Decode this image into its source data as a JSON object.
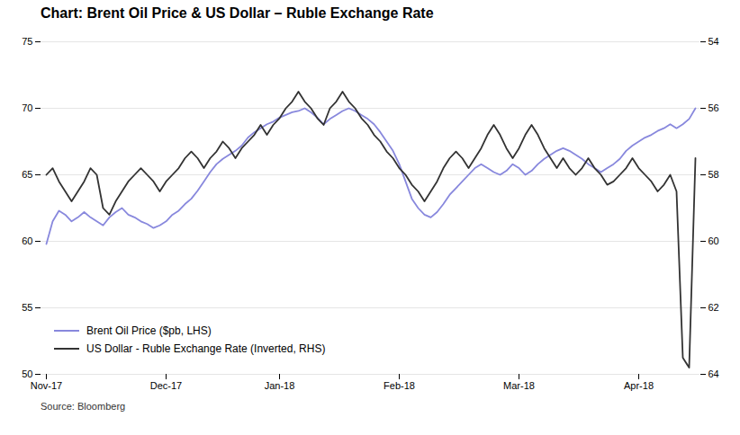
{
  "chart_data": {
    "type": "line",
    "title": "Chart: Brent Oil Price & US Dollar – Ruble Exchange Rate",
    "caption": "Source: Bloomberg",
    "categories": [
      "Nov-17",
      null,
      null,
      null,
      null,
      null,
      null,
      null,
      null,
      null,
      null,
      null,
      null,
      null,
      null,
      null,
      null,
      null,
      null,
      "Dec-17",
      null,
      null,
      null,
      null,
      null,
      null,
      null,
      null,
      null,
      null,
      null,
      null,
      null,
      null,
      null,
      null,
      null,
      "Jan-18",
      null,
      null,
      null,
      null,
      null,
      null,
      null,
      null,
      null,
      null,
      null,
      null,
      null,
      null,
      null,
      null,
      null,
      null,
      "Feb-18",
      null,
      null,
      null,
      null,
      null,
      null,
      null,
      null,
      null,
      null,
      null,
      null,
      null,
      null,
      null,
      null,
      null,
      null,
      "Mar-18",
      null,
      null,
      null,
      null,
      null,
      null,
      null,
      null,
      null,
      null,
      null,
      null,
      null,
      null,
      null,
      null,
      null,
      null,
      "Apr-18",
      null,
      null,
      null,
      null,
      null,
      null,
      null,
      null,
      null
    ],
    "series": [
      {
        "name": "Brent Oil Price ($pb, LHS)",
        "color": "#8888dd",
        "values": [
          59.8,
          61.5,
          62.3,
          62.0,
          61.5,
          61.8,
          62.2,
          61.8,
          61.5,
          61.2,
          61.8,
          62.2,
          62.5,
          62.0,
          61.8,
          61.5,
          61.3,
          61.0,
          61.2,
          61.5,
          62.0,
          62.3,
          62.8,
          63.2,
          63.8,
          64.5,
          65.2,
          65.8,
          66.2,
          66.5,
          66.8,
          67.2,
          67.8,
          68.2,
          68.5,
          68.8,
          69.0,
          69.3,
          69.5,
          69.7,
          69.8,
          70.0,
          69.7,
          69.3,
          68.8,
          69.2,
          69.5,
          69.8,
          70.0,
          69.8,
          69.5,
          69.2,
          68.8,
          68.2,
          67.5,
          66.8,
          65.8,
          64.5,
          63.2,
          62.5,
          62.0,
          61.8,
          62.2,
          62.8,
          63.5,
          64.0,
          64.5,
          65.0,
          65.5,
          65.8,
          65.5,
          65.2,
          65.0,
          65.3,
          65.8,
          65.5,
          65.0,
          65.3,
          65.8,
          66.2,
          66.5,
          66.8,
          67.0,
          66.8,
          66.5,
          66.2,
          65.8,
          65.5,
          65.2,
          65.5,
          65.8,
          66.2,
          66.8,
          67.2,
          67.5,
          67.8,
          68.0,
          68.3,
          68.5,
          68.8,
          68.5,
          68.8,
          69.2,
          70.0
        ]
      },
      {
        "name": "US Dollar - Ruble Exchange Rate (Inverted, RHS)",
        "color": "#333333",
        "axis": "y2",
        "values": [
          58.0,
          57.8,
          58.2,
          58.5,
          58.8,
          58.5,
          58.2,
          57.8,
          58.0,
          59.0,
          59.2,
          58.8,
          58.5,
          58.2,
          58.0,
          57.8,
          58.0,
          58.2,
          58.5,
          58.2,
          58.0,
          57.8,
          57.5,
          57.3,
          57.5,
          57.8,
          57.5,
          57.3,
          57.0,
          57.2,
          57.5,
          57.2,
          57.0,
          56.8,
          56.5,
          56.8,
          56.5,
          56.3,
          56.0,
          55.8,
          55.5,
          55.8,
          56.0,
          56.3,
          56.5,
          56.0,
          55.8,
          55.5,
          55.8,
          56.0,
          56.3,
          56.5,
          56.8,
          57.0,
          57.3,
          57.5,
          57.8,
          58.0,
          58.3,
          58.5,
          58.8,
          58.5,
          58.2,
          57.8,
          57.5,
          57.3,
          57.5,
          57.8,
          57.5,
          57.2,
          56.8,
          56.5,
          56.8,
          57.2,
          57.5,
          57.2,
          56.8,
          56.5,
          56.8,
          57.2,
          57.5,
          57.8,
          57.5,
          57.8,
          58.0,
          57.8,
          57.5,
          57.8,
          58.0,
          58.3,
          58.2,
          58.0,
          57.8,
          57.5,
          57.8,
          58.0,
          58.2,
          58.5,
          58.3,
          58.0,
          58.5,
          63.5,
          63.8,
          57.5
        ]
      }
    ],
    "ylim": [
      50,
      75
    ],
    "yticks": [
      50,
      55,
      60,
      65,
      70,
      75
    ],
    "y2lim": [
      64,
      54
    ],
    "y2ticks": [
      54,
      56,
      58,
      60,
      62,
      64
    ],
    "grid": true,
    "legend": "lower left"
  }
}
